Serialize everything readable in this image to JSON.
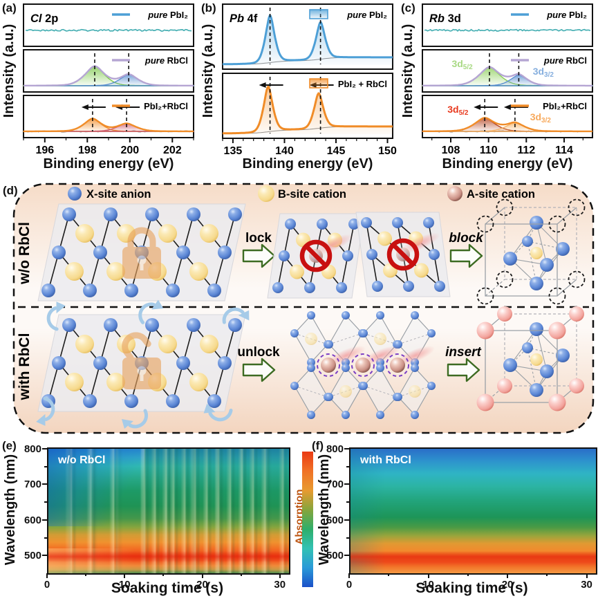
{
  "chart_data": [
    {
      "id": "a",
      "panel_label": "(a)",
      "type": "xps-line",
      "title": {
        "em": "Cl",
        "rest": " 2p"
      },
      "xlabel": "Binding energy (eV)",
      "ylabel": "Intensity (a.u.)",
      "xlim": [
        195,
        203
      ],
      "xticks": [
        196,
        198,
        200,
        202
      ],
      "minor_step": 1,
      "subpanels": [
        {
          "kind": "flat",
          "legend": {
            "em": "pure",
            "rest": " PbI₂"
          },
          "legend_style": "line",
          "legend_color": "#4d9fd6",
          "line_color": "#49b0b4"
        },
        {
          "kind": "peaks",
          "legend": {
            "em": "pure",
            "rest": " RbCl"
          },
          "legend_style": "line",
          "legend_color": "#b5a5d3",
          "envelope_color": "#b5a5d3",
          "peaks": [
            {
              "center": 198.35,
              "height": 0.8,
              "sigma": 0.52,
              "color": "#7cc84a"
            },
            {
              "center": 199.95,
              "height": 0.46,
              "sigma": 0.48,
              "color": "#5b8fd0"
            }
          ],
          "dashed_x": [
            198.35,
            199.95
          ]
        },
        {
          "kind": "peaks",
          "legend": {
            "em": "",
            "rest": "PbI₂+RbCl"
          },
          "legend_style": "line",
          "legend_color": "#f08c28",
          "envelope_color": "#f08c28",
          "peaks": [
            {
              "center": 198.25,
              "height": 0.52,
              "sigma": 0.46,
              "color": "#f08c28"
            },
            {
              "center": 199.85,
              "height": 0.32,
              "sigma": 0.5,
              "color": "#cf5c6e"
            }
          ],
          "dashed_x": [
            198.25,
            199.85
          ],
          "shift_arrows": [
            198.25,
            199.85
          ],
          "gray_baseline": "noisy"
        }
      ]
    },
    {
      "id": "b",
      "panel_label": "(b)",
      "type": "xps-line",
      "title": {
        "em": "Pb",
        "rest": " 4f"
      },
      "xlabel": "Binding energy (eV)",
      "ylabel": "Intensity (a.u.)",
      "xlim": [
        134,
        150.5
      ],
      "xticks": [
        135,
        140,
        145,
        150
      ],
      "minor_step": 1,
      "subpanels": [
        {
          "kind": "curve",
          "legend": {
            "em": "pure",
            "rest": " PbI₂"
          },
          "legend_style": "box",
          "legend_color": "#4d9fd6",
          "envelope_color": "#4d9fd6",
          "peaks": [
            {
              "center": 138.6,
              "height": 0.97,
              "sigma": 0.5,
              "color": "#4d9fd6"
            },
            {
              "center": 143.5,
              "height": 0.76,
              "sigma": 0.5,
              "color": "#4d9fd6"
            }
          ],
          "dashed_x": [
            138.6,
            143.5
          ],
          "gray_baseline": "steps"
        },
        {
          "kind": "curve",
          "legend": {
            "em": "",
            "rest": "PbI₂ + RbCl"
          },
          "legend_style": "box",
          "legend_color": "#f08c28",
          "envelope_color": "#f08c28",
          "peaks": [
            {
              "center": 138.42,
              "height": 0.93,
              "sigma": 0.5,
              "color": "#f08c28"
            },
            {
              "center": 143.32,
              "height": 0.72,
              "sigma": 0.5,
              "color": "#f08c28"
            }
          ],
          "dashed_x": [
            138.6,
            143.5
          ],
          "shift_arrows": [
            138.6,
            143.5
          ],
          "gray_baseline": "steps"
        }
      ]
    },
    {
      "id": "c",
      "panel_label": "(c)",
      "type": "xps-line",
      "title": {
        "em": "Rb",
        "rest": " 3d"
      },
      "xlabel": "Binding energy (eV)",
      "ylabel": "Intensity (a.u.)",
      "xlim": [
        106.5,
        115.5
      ],
      "xticks": [
        108,
        110,
        112,
        114
      ],
      "minor_step": 1,
      "subpanels": [
        {
          "kind": "flat",
          "legend": {
            "em": "pure",
            "rest": " PbI₂"
          },
          "legend_style": "line",
          "legend_color": "#4d9fd6",
          "line_color": "#49b0b4"
        },
        {
          "kind": "peaks",
          "legend": {
            "em": "pure",
            "rest": " RbCl"
          },
          "legend_style": "line",
          "legend_color": "#b5a5d3",
          "envelope_color": "#b5a5d3",
          "peaks": [
            {
              "center": 110.05,
              "height": 0.76,
              "sigma": 0.62,
              "color": "#8cce58",
              "label": {
                "base": "3d",
                "sub": "5/2"
              },
              "label_color": "#a8d983",
              "label_side": "left"
            },
            {
              "center": 111.6,
              "height": 0.44,
              "sigma": 0.5,
              "color": "#5b8fd0",
              "label": {
                "base": "3d",
                "sub": "3/2"
              },
              "label_color": "#85aede",
              "label_side": "right"
            }
          ],
          "dashed_x": [
            110.05,
            111.6
          ]
        },
        {
          "kind": "peaks",
          "legend": {
            "em": "",
            "rest": "PbI₂+RbCl"
          },
          "legend_style": "line",
          "legend_color": "#f08c28",
          "envelope_color": "#f08c28",
          "peaks": [
            {
              "center": 109.8,
              "height": 0.55,
              "sigma": 0.6,
              "color": "#b5431f",
              "label": {
                "base": "3d",
                "sub": "5/2"
              },
              "label_color": "#e8391e",
              "label_side": "left"
            },
            {
              "center": 111.4,
              "height": 0.35,
              "sigma": 0.55,
              "color": "#f5b368",
              "label": {
                "base": "3d",
                "sub": "3/2"
              },
              "label_color": "#f7a95c",
              "label_side": "right"
            }
          ],
          "dashed_x": [
            109.8,
            111.4
          ],
          "shift_arrows": [
            109.8,
            111.4
          ],
          "gray_baseline": "noisy"
        }
      ]
    },
    {
      "id": "e",
      "panel_label": "(e)",
      "type": "heatmap",
      "inner_label": "w/o RbCl",
      "xlabel": "Soaking time (s)",
      "ylabel": "Wavelength (nm)",
      "xlim": [
        0,
        31
      ],
      "ylim": [
        450,
        800
      ],
      "xticks": [
        0,
        10,
        20,
        30
      ],
      "x_minor": [
        5,
        15,
        25
      ],
      "yticks": [
        500,
        600,
        700,
        800
      ],
      "y_minor": [
        550,
        650,
        750
      ],
      "gradient": [
        "#2583cd 0%",
        "#2ea3c8 7%",
        "#2fb8b2 14%",
        "#27a887 24%",
        "#1d9a66 34%",
        "#1f9355 46%",
        "#44974b 56%",
        "#86a53e 63%",
        "#d19c35 69%",
        "#f0922f 75%",
        "#f26a22 81%",
        "#ee4517 86%",
        "#f15a20 90%",
        "#f08a3a 94%",
        "#c89a45 97%",
        "#4f8f50 100%"
      ],
      "streak_times": [
        3,
        5.5,
        8.5,
        12.5,
        13.8,
        15.2,
        16.2,
        17.6,
        19,
        20.5,
        22,
        23.5,
        25,
        26.5,
        28,
        30.3
      ]
    },
    {
      "id": "f",
      "panel_label": "(f)",
      "type": "heatmap",
      "inner_label": "with RbCl",
      "xlabel": "Soaking time (s)",
      "ylabel": "Wavelength (nm)",
      "xlim": [
        0,
        31
      ],
      "ylim": [
        450,
        800
      ],
      "xticks": [
        0,
        10,
        20,
        30
      ],
      "x_minor": [
        5,
        15,
        25
      ],
      "yticks": [
        500,
        600,
        700,
        800
      ],
      "y_minor": [
        550,
        650,
        750
      ],
      "gradient": [
        "#2a6ec8 0%",
        "#2d93cd 10%",
        "#2fb4c4 20%",
        "#2cb4a4 30%",
        "#22a47b 42%",
        "#1d9558 55%",
        "#4a9a45 63%",
        "#9aa53c 70%",
        "#e09a33 76%",
        "#f28a2d 82%",
        "#f05a1e 87%",
        "#ee4a1a 91%",
        "#f2762a 95%",
        "#f59a44 100%"
      ],
      "streak_times": []
    }
  ],
  "colorbar": {
    "label": "Absorption",
    "label_color": "#bc5410",
    "stops_bottom_to_top": [
      "#1b50c8",
      "#2a9ad8",
      "#32c2b4",
      "#2fae6a",
      "#86a53c",
      "#e89a30",
      "#f07226",
      "#ea3a14"
    ]
  },
  "schematic": {
    "panel_label": "(d)",
    "legend": [
      {
        "label": "X-site anion",
        "color": "#5b86d5"
      },
      {
        "label": "B-site cation",
        "color": "#f6d98c"
      },
      {
        "label": "A-site cation",
        "color": "#c98f84"
      }
    ],
    "rows": [
      {
        "row_label": "w/o RbCl",
        "arrow1_label": "lock",
        "arrow1_italic": false,
        "arrow2_label": "block",
        "arrow2_italic": true
      },
      {
        "row_label": "with RbCl",
        "arrow1_label": "unlock",
        "arrow1_italic": false,
        "arrow2_label": "insert",
        "arrow2_italic": true
      }
    ],
    "colors": {
      "anion": "#5b86d5",
      "cation_b": "#f6d98c",
      "cation_a": "#c98f84",
      "prohibit": "#c81010",
      "arrow_outline": "#3c6b22",
      "lock": "#e8a35f",
      "rotation": "#a6cbe8",
      "inserted_ring": "#7b3fc4",
      "empty_site_ring": "#1a1a1a",
      "lattice_line": "#1d1d1d",
      "cell_line": "#9aa0a6",
      "bg_top": "#f6dcc8",
      "bg_mid": "#fdf9f6",
      "bg_bottom": "#f3d5bf"
    }
  }
}
